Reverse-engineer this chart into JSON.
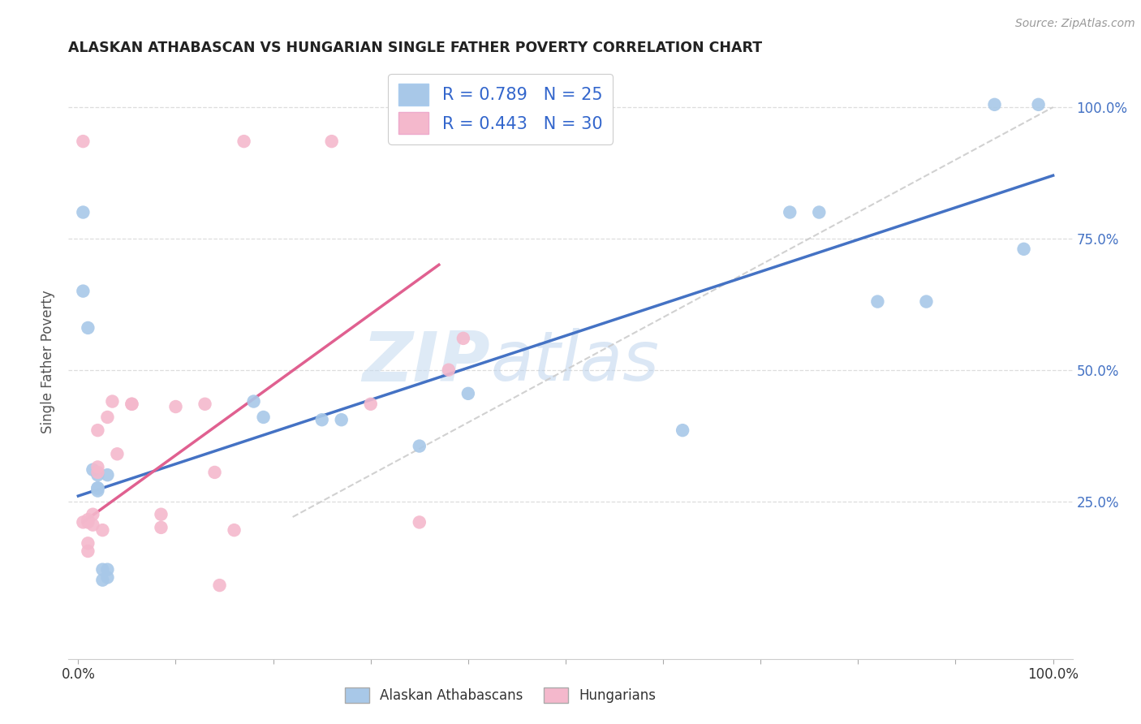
{
  "title": "ALASKAN ATHABASCAN VS HUNGARIAN SINGLE FATHER POVERTY CORRELATION CHART",
  "source": "Source: ZipAtlas.com",
  "ylabel": "Single Father Poverty",
  "xlabel": "",
  "xlim": [
    -0.01,
    1.02
  ],
  "ylim": [
    -0.05,
    1.08
  ],
  "x_ticks": [
    0.0,
    0.1,
    0.2,
    0.3,
    0.4,
    0.5,
    0.6,
    0.7,
    0.8,
    0.9,
    1.0
  ],
  "x_tick_labels": [
    "0.0%",
    "",
    "",
    "",
    "",
    "",
    "",
    "",
    "",
    "",
    "100.0%"
  ],
  "y_tick_labels_right": [
    "25.0%",
    "50.0%",
    "75.0%",
    "100.0%"
  ],
  "y_ticks_right": [
    0.25,
    0.5,
    0.75,
    1.0
  ],
  "legend_label1": "Alaskan Athabascans",
  "legend_label2": "Hungarians",
  "color_blue": "#a8c8e8",
  "color_pink": "#f4b8cc",
  "line_blue": "#4472c4",
  "line_pink": "#e06090",
  "line_diag": "#cccccc",
  "watermark_zip": "ZIP",
  "watermark_atlas": "atlas",
  "blue_points": [
    [
      0.005,
      0.8
    ],
    [
      0.005,
      0.65
    ],
    [
      0.01,
      0.58
    ],
    [
      0.015,
      0.31
    ],
    [
      0.02,
      0.3
    ],
    [
      0.02,
      0.27
    ],
    [
      0.02,
      0.275
    ],
    [
      0.02,
      0.275
    ],
    [
      0.025,
      0.1
    ],
    [
      0.025,
      0.12
    ],
    [
      0.03,
      0.105
    ],
    [
      0.03,
      0.3
    ],
    [
      0.03,
      0.12
    ],
    [
      0.18,
      0.44
    ],
    [
      0.19,
      0.41
    ],
    [
      0.25,
      0.405
    ],
    [
      0.27,
      0.405
    ],
    [
      0.35,
      0.355
    ],
    [
      0.4,
      0.455
    ],
    [
      0.62,
      0.385
    ],
    [
      0.73,
      0.8
    ],
    [
      0.76,
      0.8
    ],
    [
      0.82,
      0.63
    ],
    [
      0.87,
      0.63
    ],
    [
      0.94,
      1.005
    ],
    [
      0.97,
      0.73
    ],
    [
      0.985,
      1.005
    ]
  ],
  "pink_points": [
    [
      0.005,
      0.935
    ],
    [
      0.005,
      0.21
    ],
    [
      0.01,
      0.215
    ],
    [
      0.01,
      0.17
    ],
    [
      0.01,
      0.155
    ],
    [
      0.01,
      0.21
    ],
    [
      0.015,
      0.205
    ],
    [
      0.015,
      0.225
    ],
    [
      0.02,
      0.305
    ],
    [
      0.02,
      0.315
    ],
    [
      0.02,
      0.385
    ],
    [
      0.025,
      0.195
    ],
    [
      0.03,
      0.41
    ],
    [
      0.035,
      0.44
    ],
    [
      0.04,
      0.34
    ],
    [
      0.055,
      0.435
    ],
    [
      0.055,
      0.435
    ],
    [
      0.085,
      0.2
    ],
    [
      0.085,
      0.225
    ],
    [
      0.1,
      0.43
    ],
    [
      0.13,
      0.435
    ],
    [
      0.14,
      0.305
    ],
    [
      0.145,
      0.09
    ],
    [
      0.16,
      0.195
    ],
    [
      0.17,
      0.935
    ],
    [
      0.26,
      0.935
    ],
    [
      0.3,
      0.435
    ],
    [
      0.35,
      0.21
    ],
    [
      0.38,
      0.5
    ],
    [
      0.395,
      0.56
    ]
  ],
  "blue_line_x0": 0.0,
  "blue_line_x1": 1.0,
  "blue_line_y0": 0.26,
  "blue_line_y1": 0.87,
  "pink_line_x0": 0.005,
  "pink_line_x1": 0.37,
  "pink_line_y0": 0.21,
  "pink_line_y1": 0.7,
  "diag_line_x0": 0.22,
  "diag_line_x1": 1.0,
  "diag_line_y0": 0.22,
  "diag_line_y1": 1.0,
  "background_color": "#ffffff",
  "grid_color": "#dddddd",
  "title_color": "#222222",
  "axis_label_color": "#555555",
  "right_tick_color": "#4472c4",
  "right_100_color": "#4472c4"
}
